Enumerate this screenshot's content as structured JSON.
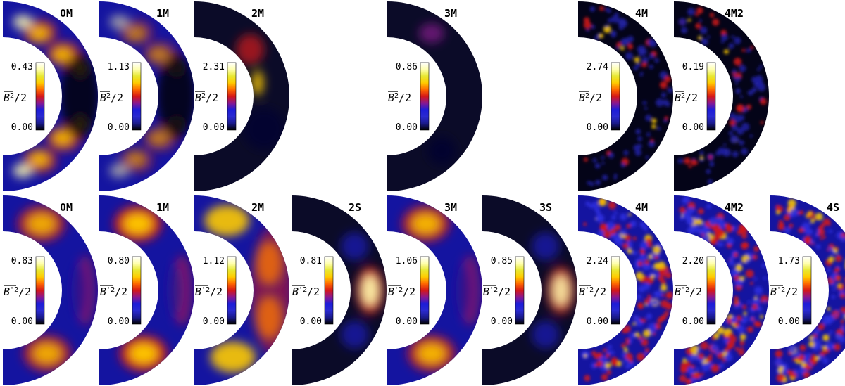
{
  "colormap": [
    "#000000",
    "#1a1a8c",
    "#2a2ad0",
    "#1c1cd8",
    "#8a1890",
    "#d51818",
    "#ff6a00",
    "#ffcc00",
    "#e8e832",
    "#ffffb0",
    "#ffffff"
  ],
  "rows": [
    {
      "label_main": "B",
      "label_prime": "",
      "label_suffix": "/2",
      "panels": [
        {
          "name": "0M",
          "max": "0.43",
          "min": "0.00",
          "pattern": "lat-bands",
          "intensity": 0.85
        },
        {
          "name": "1M",
          "max": "1.13",
          "min": "0.00",
          "pattern": "lat-bands",
          "intensity": 0.55
        },
        {
          "name": "2M",
          "max": "2.31",
          "min": "0.00",
          "pattern": "equator-blob",
          "intensity": 0.45
        },
        null,
        {
          "name": "3M",
          "max": "0.86",
          "min": "0.00",
          "pattern": "weak",
          "intensity": 0.35
        },
        null,
        {
          "name": "4M",
          "max": "2.74",
          "min": "0.00",
          "pattern": "noisy",
          "intensity": 0.35
        },
        {
          "name": "4M2",
          "max": "0.19",
          "min": "0.00",
          "pattern": "noisy",
          "intensity": 0.3
        },
        null
      ]
    },
    {
      "label_main": "B",
      "label_prime": "'",
      "label_suffix": "/2",
      "panels": [
        {
          "name": "0M",
          "max": "0.83",
          "min": "0.00",
          "pattern": "bands",
          "intensity": 0.8
        },
        {
          "name": "1M",
          "max": "0.80",
          "min": "0.00",
          "pattern": "bands",
          "intensity": 0.95
        },
        {
          "name": "2M",
          "max": "1.12",
          "min": "0.00",
          "pattern": "bands-blobs",
          "intensity": 0.9
        },
        {
          "name": "2S",
          "max": "0.81",
          "min": "0.00",
          "pattern": "equator-core",
          "intensity": 0.9
        },
        {
          "name": "3M",
          "max": "1.06",
          "min": "0.00",
          "pattern": "bands",
          "intensity": 0.85
        },
        {
          "name": "3S",
          "max": "0.85",
          "min": "0.00",
          "pattern": "equator-core",
          "intensity": 0.85
        },
        {
          "name": "4M",
          "max": "2.24",
          "min": "0.00",
          "pattern": "turbulent",
          "intensity": 0.7
        },
        {
          "name": "4M2",
          "max": "2.20",
          "min": "0.00",
          "pattern": "turbulent",
          "intensity": 0.6
        },
        {
          "name": "4S",
          "max": "1.73",
          "min": "0.00",
          "pattern": "turbulent",
          "intensity": 0.65
        }
      ]
    }
  ]
}
